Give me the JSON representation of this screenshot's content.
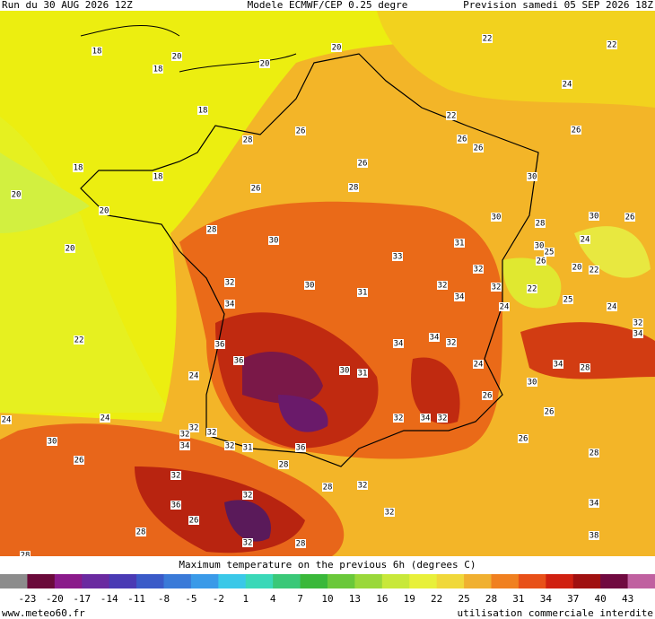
{
  "header": {
    "run": "Run du 30 AUG 2026 12Z",
    "model": "Modele ECMWF/CEP 0.25 degre",
    "forecast": "Prevision samedi 05 SEP 2026 18Z"
  },
  "map": {
    "labels": [
      18,
      20,
      20,
      20,
      22,
      22,
      18,
      18,
      24,
      22,
      26,
      28,
      26,
      26,
      26,
      18,
      18,
      20,
      26,
      26,
      28,
      30,
      20,
      28,
      30,
      28,
      30,
      26,
      30,
      24,
      31,
      30,
      25,
      20,
      33,
      32,
      26,
      20,
      22,
      32,
      30,
      31,
      32,
      32,
      22,
      34,
      25,
      24,
      34,
      24,
      32,
      34,
      22,
      36,
      34,
      34,
      32,
      36,
      30,
      31,
      24,
      34,
      28,
      24,
      30,
      26,
      26,
      24,
      24,
      32,
      34,
      32,
      32,
      32,
      32,
      30,
      34,
      32,
      31,
      36,
      26,
      26,
      28,
      32,
      28,
      32,
      32,
      36,
      32,
      26,
      34,
      28,
      32,
      38,
      28,
      28,
      28
    ]
  },
  "legend": {
    "title": "Maximum temperature on the previous 6h (degrees C)",
    "ticks": [
      -23,
      -20,
      -17,
      -14,
      -11,
      -8,
      -5,
      -2,
      1,
      4,
      7,
      10,
      13,
      16,
      19,
      22,
      25,
      28,
      31,
      34,
      37,
      40,
      43
    ],
    "colors": [
      "#8c8c8c",
      "#6a0a3a",
      "#8a1a8a",
      "#6a2aa0",
      "#4a3ab4",
      "#3a5ac8",
      "#3a7ad8",
      "#3a9ae8",
      "#3ac8e8",
      "#3ad8b8",
      "#3ac878",
      "#3ab83a",
      "#6ac83a",
      "#9ad83a",
      "#c8e83a",
      "#e8f03a",
      "#f0d83a",
      "#f0b030",
      "#f08020",
      "#e85018",
      "#d02010",
      "#a01010",
      "#700a40",
      "#c060a0"
    ]
  },
  "footer": {
    "site": "www.meteo60.fr",
    "notice": "utilisation commerciale interdite"
  }
}
